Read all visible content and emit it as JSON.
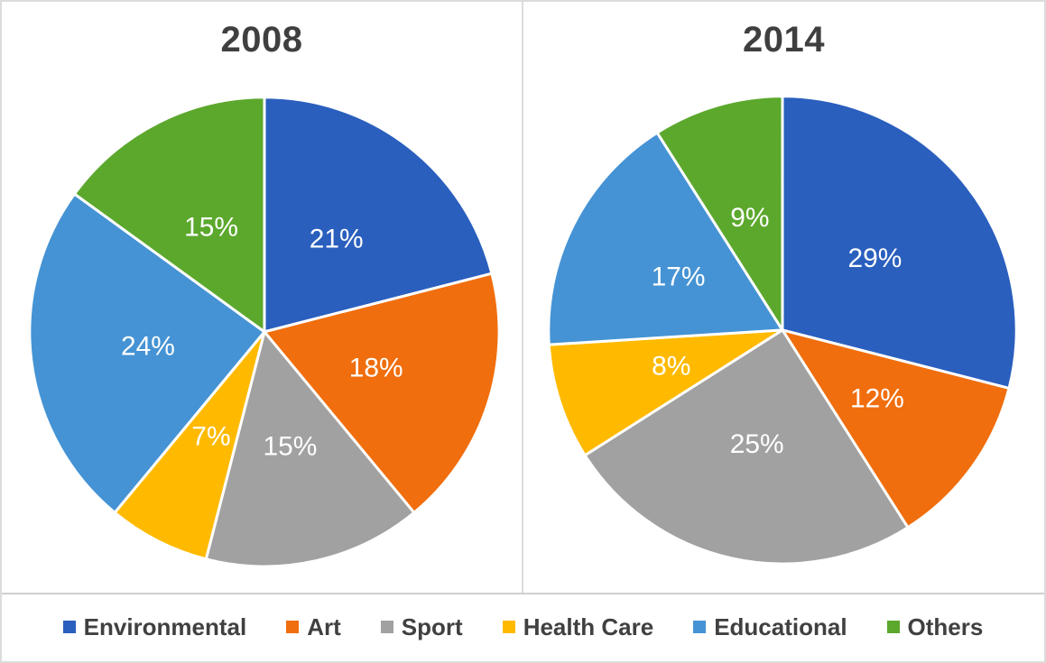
{
  "figure": {
    "background": "#FFFFFF",
    "border_color": "#DCDCDC",
    "divider_color": "#CFCFCF",
    "title_color": "#3F3F3F",
    "data_label_color": "#FFFFFF"
  },
  "chart_data": [
    {
      "type": "pie",
      "title": "2008",
      "unit": "percent",
      "start_angle_deg": 0,
      "direction": "clockwise",
      "slices": [
        {
          "label": "Environmental",
          "value": 21,
          "data_label": "21%",
          "color": "#2A5FBE"
        },
        {
          "label": "Art",
          "value": 18,
          "data_label": "18%",
          "color": "#F06E0D"
        },
        {
          "label": "Sport",
          "value": 15,
          "data_label": "15%",
          "color": "#A1A1A1"
        },
        {
          "label": "Health Care",
          "value": 7,
          "data_label": "7%",
          "color": "#FFBA00"
        },
        {
          "label": "Educational",
          "value": 24,
          "data_label": "24%",
          "color": "#4593D4"
        },
        {
          "label": "Others",
          "value": 15,
          "data_label": "15%",
          "color": "#5CA82D"
        }
      ]
    },
    {
      "type": "pie",
      "title": "2014",
      "unit": "percent",
      "start_angle_deg": 0,
      "direction": "clockwise",
      "slices": [
        {
          "label": "Environmental",
          "value": 29,
          "data_label": "29%",
          "color": "#2A5FBE"
        },
        {
          "label": "Art",
          "value": 12,
          "data_label": "12%",
          "color": "#F06E0D"
        },
        {
          "label": "Sport",
          "value": 25,
          "data_label": "25%",
          "color": "#A1A1A1"
        },
        {
          "label": "Health Care",
          "value": 8,
          "data_label": "8%",
          "color": "#FFBA00"
        },
        {
          "label": "Educational",
          "value": 17,
          "data_label": "17%",
          "color": "#4593D4"
        },
        {
          "label": "Others",
          "value": 9,
          "data_label": "9%",
          "color": "#5CA82D"
        }
      ]
    }
  ],
  "legend": {
    "position": "bottom",
    "items": [
      {
        "label": "Environmental",
        "color": "#2A5FBE"
      },
      {
        "label": "Art",
        "color": "#F06E0D"
      },
      {
        "label": "Sport",
        "color": "#A1A1A1"
      },
      {
        "label": "Health Care",
        "color": "#FFBA00"
      },
      {
        "label": "Educational",
        "color": "#4593D4"
      },
      {
        "label": "Others",
        "color": "#5CA82D"
      }
    ]
  }
}
